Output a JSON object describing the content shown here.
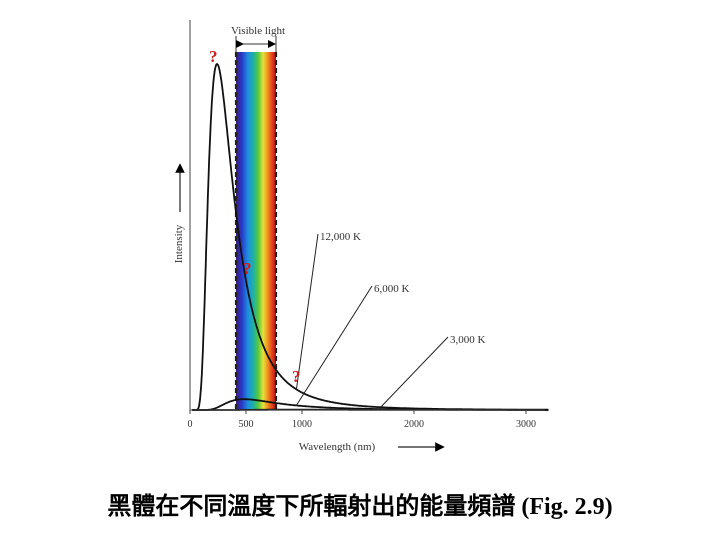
{
  "chart_data": {
    "type": "line",
    "title": "",
    "xlabel": "Wavelength (nm)",
    "ylabel": "Intensity",
    "xlim": [
      0,
      3200
    ],
    "x_ticks": [
      0,
      500,
      1000,
      2000,
      3000
    ],
    "x_tick_labels": [
      "0",
      "500",
      "1000",
      "2000",
      "3000"
    ],
    "band": {
      "label": "Visible light",
      "range_nm": [
        400,
        760
      ]
    },
    "series": [
      {
        "name": "12,000 K",
        "temperature": 12000
      },
      {
        "name": "6,000 K",
        "temperature": 6000
      },
      {
        "name": "3,000 K",
        "temperature": 3000
      }
    ],
    "annotations": [
      "?",
      "?",
      "?"
    ],
    "colors": {
      "curve": "#111111",
      "question_mark": "#cc2020"
    }
  },
  "caption": "黑體在不同溫度下所輻射出的能量頻譜 (Fig. 2.9)"
}
